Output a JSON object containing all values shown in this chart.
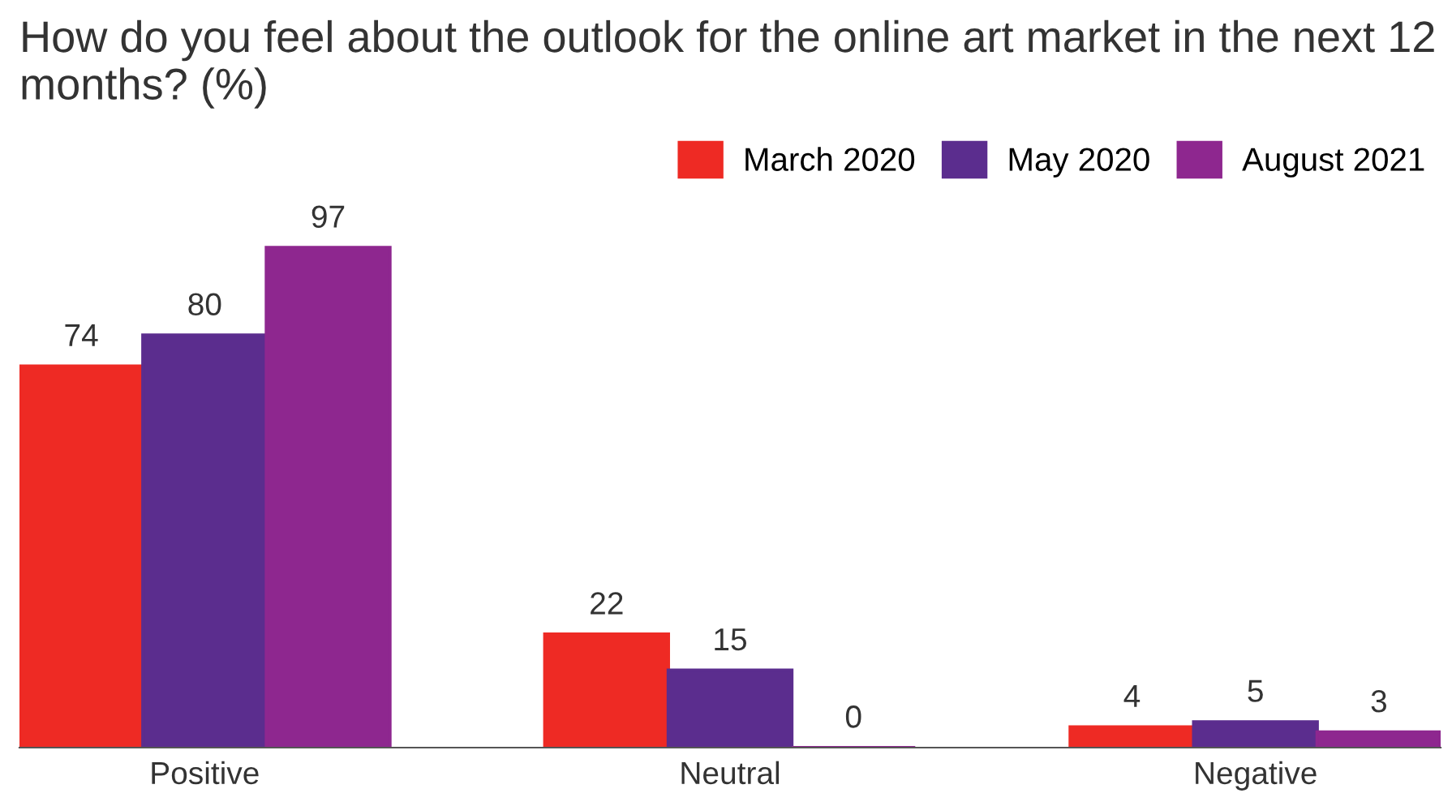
{
  "chart_data": {
    "type": "bar",
    "title": "How do you feel about the outlook for the online art market in the next 12 months? (%)",
    "categories": [
      "Positive",
      "Neutral",
      "Negative"
    ],
    "series": [
      {
        "name": "March 2020",
        "color": "#ee2a24",
        "values": [
          74,
          22,
          4
        ]
      },
      {
        "name": "May 2020",
        "color": "#5b2d8e",
        "values": [
          80,
          15,
          5
        ]
      },
      {
        "name": "August 2021",
        "color": "#8e278f",
        "values": [
          97,
          0,
          3
        ]
      }
    ],
    "data_labels": true,
    "legend": "top right",
    "grid": false
  }
}
